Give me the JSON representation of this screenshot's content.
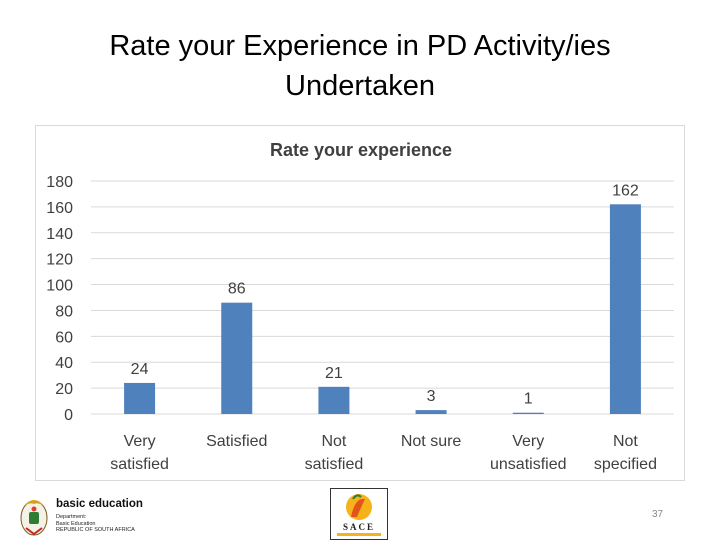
{
  "slide": {
    "title_line1": "Rate your Experience in PD Activity/ies",
    "title_line2": "Undertaken",
    "page_number": "37"
  },
  "footer": {
    "dept_name": "basic education",
    "dept_sub_1": "Department:",
    "dept_sub_2": "Basic Education",
    "dept_sub_3": "REPUBLIC OF SOUTH AFRICA",
    "sace_text": "SACE"
  },
  "chart_data": {
    "type": "bar",
    "title": "Rate your experience",
    "categories": [
      [
        "Very",
        "satisfied"
      ],
      [
        "Satisfied"
      ],
      [
        "Not",
        "satisfied"
      ],
      [
        "Not sure"
      ],
      [
        "Very",
        "unsatisfied"
      ],
      [
        "Not",
        "specified"
      ]
    ],
    "values": [
      24,
      86,
      21,
      3,
      1,
      162
    ],
    "ylim": [
      0,
      180
    ],
    "yticks": [
      0,
      20,
      40,
      60,
      80,
      100,
      120,
      140,
      160,
      180
    ],
    "grid": true,
    "legend": "none",
    "bar_color": "#4f81bd",
    "grid_color": "#d9d9d9"
  }
}
